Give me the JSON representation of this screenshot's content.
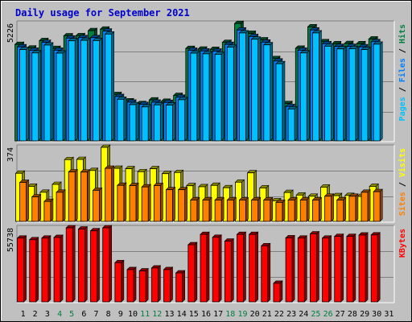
{
  "chart_data": {
    "type": "bar",
    "title": "Daily usage for September 2021",
    "x_labels": [
      "1",
      "2",
      "3",
      "4",
      "5",
      "6",
      "7",
      "8",
      "9",
      "10",
      "11",
      "12",
      "13",
      "14",
      "15",
      "16",
      "17",
      "18",
      "19",
      "20",
      "21",
      "22",
      "23",
      "24",
      "25",
      "26",
      "27",
      "28",
      "29",
      "30",
      "31"
    ],
    "weekend_days": [
      4,
      5,
      11,
      12,
      18,
      19,
      25,
      26
    ],
    "grid": true,
    "colors": {
      "frame_bg": "#c0c0c0",
      "plot_bg": "#c0c0c0",
      "grid": "#808080",
      "title": "#0000cc",
      "weekday_label": "#000000",
      "weekend_label": "#008040",
      "hits": "#008040",
      "files": "#0080ff",
      "pages": "#00c0ff",
      "visits": "#ffff00",
      "sites": "#ff8000",
      "kbytes": "#ff0000"
    },
    "panels": [
      {
        "id": "hits",
        "max_label": "5226",
        "ymax": 5226,
        "legend": [
          "Pages",
          "Files",
          "Hits"
        ],
        "series": [
          {
            "name": "Hits",
            "values": [
              4290,
              4130,
              4460,
              4110,
              4670,
              4680,
              4900,
              4970,
              2060,
              1780,
              1660,
              1820,
              1760,
              2020,
              4110,
              4080,
              4070,
              4380,
              5220,
              4780,
              4490,
              3660,
              1660,
              4120,
              5070,
              4410,
              4320,
              4330,
              4320,
              4530,
              null
            ]
          },
          {
            "name": "Files",
            "values": [
              4180,
              4030,
              4380,
              4030,
              4570,
              4590,
              4590,
              4880,
              1970,
              1720,
              1620,
              1720,
              1710,
              1940,
              4030,
              4000,
              3990,
              4290,
              4930,
              4640,
              4390,
              3550,
              1530,
              4030,
              4930,
              4320,
              4200,
              4200,
              4180,
              4410,
              null
            ]
          },
          {
            "name": "Pages",
            "values": [
              4060,
              3910,
              4260,
              3900,
              4450,
              4470,
              4460,
              4750,
              1850,
              1610,
              1510,
              1600,
              1590,
              1830,
              3900,
              3870,
              3850,
              4170,
              4800,
              4520,
              4270,
              3430,
              1420,
              3910,
              4800,
              4210,
              4090,
              4100,
              4060,
              4300,
              null
            ]
          }
        ]
      },
      {
        "id": "visits",
        "max_label": "374",
        "ymax": 374,
        "legend": [
          "Sites",
          "Visits"
        ],
        "series": [
          {
            "name": "Visits",
            "values": [
              243,
              177,
              147,
              187,
              312,
              313,
              257,
              374,
              268,
              266,
              251,
              266,
              241,
              247,
              180,
              175,
              182,
              170,
              198,
              245,
              169,
              104,
              146,
              133,
              127,
              173,
              130,
              131,
              126,
              177,
              null
            ]
          },
          {
            "name": "Sites",
            "values": [
              197,
              124,
              101,
              147,
              250,
              249,
              157,
              268,
              182,
              181,
              174,
              181,
              160,
              160,
              108,
              108,
              108,
              108,
              108,
              108,
              108,
              96,
              108,
              108,
              108,
              127,
              108,
              127,
              147,
              150,
              null
            ]
          }
        ]
      },
      {
        "id": "kbytes",
        "max_label": "55738",
        "ymax": 55738,
        "legend": [
          "KBytes"
        ],
        "series": [
          {
            "name": "KBytes",
            "values": [
              48000,
              46800,
              48000,
              48500,
              55738,
              54800,
              53500,
              55738,
              29500,
              24300,
              23300,
              25500,
              24300,
              21800,
              43000,
              50800,
              48600,
              45700,
              50800,
              50800,
              42200,
              14000,
              48200,
              48000,
              51200,
              48000,
              49300,
              49300,
              50300,
              50400,
              null
            ]
          }
        ]
      }
    ]
  }
}
